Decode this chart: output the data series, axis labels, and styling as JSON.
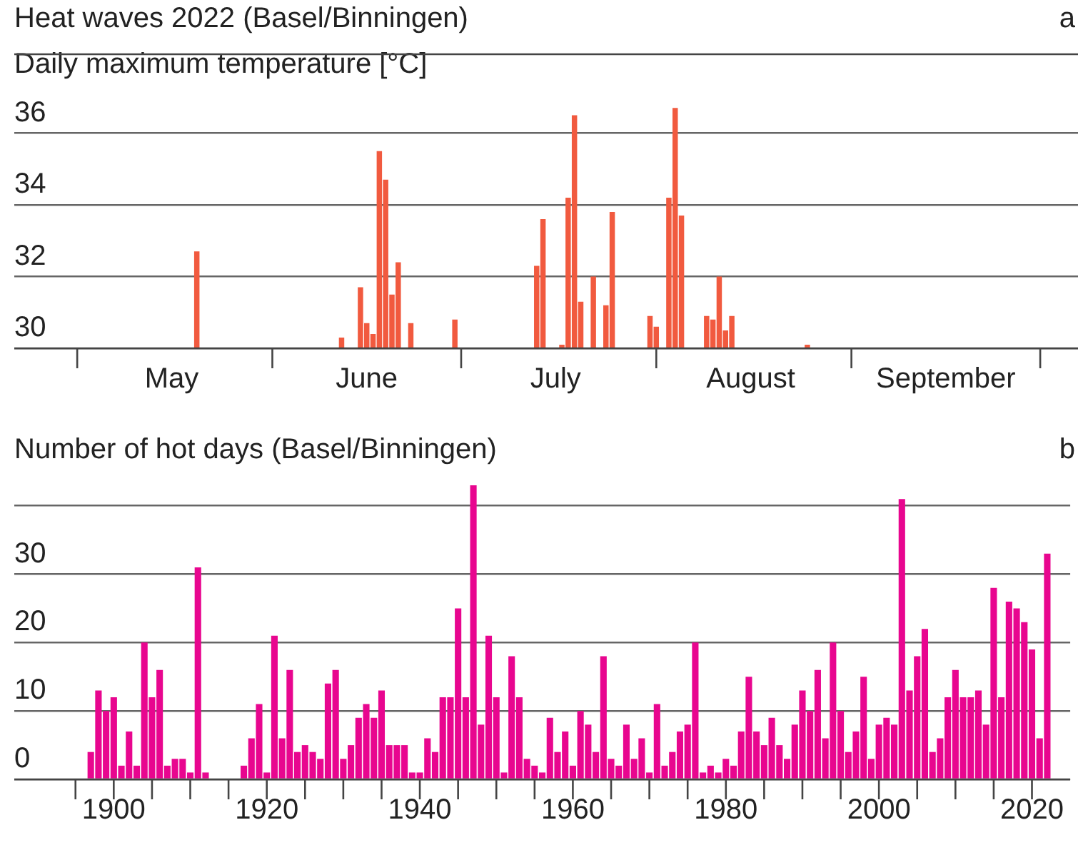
{
  "chart_data": [
    {
      "type": "bar",
      "title": "Heat waves  2022   (Basel/Binningen)",
      "ylabel": "Daily maximum temperature [°C]",
      "annotations": [
        "a"
      ],
      "x": [
        "2022-05-20",
        "2022-06-12",
        "2022-06-15",
        "2022-06-16",
        "2022-06-17",
        "2022-06-18",
        "2022-06-19",
        "2022-06-20",
        "2022-06-21",
        "2022-06-23",
        "2022-06-30",
        "2022-07-13",
        "2022-07-14",
        "2022-07-17",
        "2022-07-18",
        "2022-07-19",
        "2022-07-20",
        "2022-07-22",
        "2022-07-24",
        "2022-07-25",
        "2022-07-31",
        "2022-08-01",
        "2022-08-03",
        "2022-08-04",
        "2022-08-05",
        "2022-08-09",
        "2022-08-10",
        "2022-08-11",
        "2022-08-12",
        "2022-08-13",
        "2022-08-25"
      ],
      "values": [
        32.7,
        30.3,
        31.7,
        30.7,
        30.4,
        35.5,
        34.7,
        31.5,
        32.4,
        30.7,
        30.8,
        32.3,
        33.6,
        30.1,
        34.2,
        36.5,
        31.3,
        32.0,
        31.2,
        33.8,
        30.9,
        30.6,
        34.2,
        36.7,
        33.7,
        30.9,
        30.8,
        32.0,
        30.5,
        30.9,
        30.1
      ],
      "color": "#f15a3f",
      "ylim": [
        30,
        38.2
      ],
      "yticks": [
        30,
        32,
        34,
        36
      ],
      "xlim": [
        "2022-04-21",
        "2022-10-07"
      ],
      "xticks": [
        {
          "value": "2022-05-01",
          "label": null
        },
        {
          "value": "2022-05-16",
          "label": "May"
        },
        {
          "value": "2022-06-01",
          "label": null
        },
        {
          "value": "2022-06-16",
          "label": "June"
        },
        {
          "value": "2022-07-01",
          "label": null
        },
        {
          "value": "2022-07-16",
          "label": "July"
        },
        {
          "value": "2022-08-01",
          "label": null
        },
        {
          "value": "2022-08-16",
          "label": "August"
        },
        {
          "value": "2022-09-01",
          "label": null
        },
        {
          "value": "2022-09-16",
          "label": "September"
        },
        {
          "value": "2022-10-01",
          "label": null
        }
      ],
      "grid": "y"
    },
    {
      "type": "bar",
      "title": "Number of hot days  (Basel/Binningen)",
      "annotations": [
        "b"
      ],
      "x": [
        1897,
        1898,
        1899,
        1900,
        1901,
        1902,
        1903,
        1904,
        1905,
        1906,
        1907,
        1908,
        1909,
        1910,
        1911,
        1912,
        1913,
        1914,
        1915,
        1916,
        1917,
        1918,
        1919,
        1920,
        1921,
        1922,
        1923,
        1924,
        1925,
        1926,
        1927,
        1928,
        1929,
        1930,
        1931,
        1932,
        1933,
        1934,
        1935,
        1936,
        1937,
        1938,
        1939,
        1940,
        1941,
        1942,
        1943,
        1944,
        1945,
        1946,
        1947,
        1948,
        1949,
        1950,
        1951,
        1952,
        1953,
        1954,
        1955,
        1956,
        1957,
        1958,
        1959,
        1960,
        1961,
        1962,
        1963,
        1964,
        1965,
        1966,
        1967,
        1968,
        1969,
        1970,
        1971,
        1972,
        1973,
        1974,
        1975,
        1976,
        1977,
        1978,
        1979,
        1980,
        1981,
        1982,
        1983,
        1984,
        1985,
        1986,
        1987,
        1988,
        1989,
        1990,
        1991,
        1992,
        1993,
        1994,
        1995,
        1996,
        1997,
        1998,
        1999,
        2000,
        2001,
        2002,
        2003,
        2004,
        2005,
        2006,
        2007,
        2008,
        2009,
        2010,
        2011,
        2012,
        2013,
        2014,
        2015,
        2016,
        2017,
        2018,
        2019,
        2020,
        2021,
        2022
      ],
      "values": [
        4,
        13,
        10,
        12,
        2,
        7,
        2,
        20,
        12,
        16,
        2,
        3,
        3,
        1,
        31,
        1,
        0,
        0,
        0,
        0,
        2,
        6,
        11,
        1,
        21,
        6,
        16,
        4,
        5,
        4,
        3,
        14,
        16,
        3,
        5,
        9,
        11,
        9,
        13,
        5,
        5,
        5,
        1,
        1,
        6,
        4,
        12,
        12,
        25,
        12,
        43,
        8,
        21,
        12,
        1,
        18,
        12,
        3,
        2,
        1,
        9,
        4,
        7,
        2,
        10,
        8,
        4,
        18,
        3,
        2,
        8,
        3,
        6,
        1,
        11,
        2,
        4,
        7,
        8,
        20,
        1,
        2,
        1,
        3,
        2,
        7,
        15,
        7,
        5,
        9,
        5,
        3,
        8,
        13,
        10,
        16,
        6,
        20,
        10,
        4,
        7,
        15,
        3,
        8,
        9,
        8,
        41,
        13,
        18,
        22,
        4,
        6,
        12,
        16,
        12,
        12,
        13,
        8,
        28,
        12,
        26,
        25,
        23,
        19,
        6,
        33
      ],
      "color": "#e8068f",
      "ylim": [
        0,
        43
      ],
      "yticks": [
        0,
        10,
        20,
        30,
        {
          "value": 40,
          "label": null
        }
      ],
      "xlim": [
        1887,
        2025
      ],
      "xticks": [
        {
          "value": 1895,
          "label": null
        },
        1900,
        {
          "value": 1905,
          "label": null
        },
        {
          "value": 1910,
          "label": null
        },
        {
          "value": 1915,
          "label": null
        },
        1920,
        {
          "value": 1925,
          "label": null
        },
        {
          "value": 1930,
          "label": null
        },
        {
          "value": 1935,
          "label": null
        },
        1940,
        {
          "value": 1945,
          "label": null
        },
        {
          "value": 1950,
          "label": null
        },
        {
          "value": 1955,
          "label": null
        },
        1960,
        {
          "value": 1965,
          "label": null
        },
        {
          "value": 1970,
          "label": null
        },
        {
          "value": 1975,
          "label": null
        },
        1980,
        {
          "value": 1985,
          "label": null
        },
        {
          "value": 1990,
          "label": null
        },
        {
          "value": 1995,
          "label": null
        },
        2000,
        {
          "value": 2005,
          "label": null
        },
        {
          "value": 2010,
          "label": null
        },
        {
          "value": 2015,
          "label": null
        },
        2020
      ],
      "grid": "y"
    }
  ]
}
